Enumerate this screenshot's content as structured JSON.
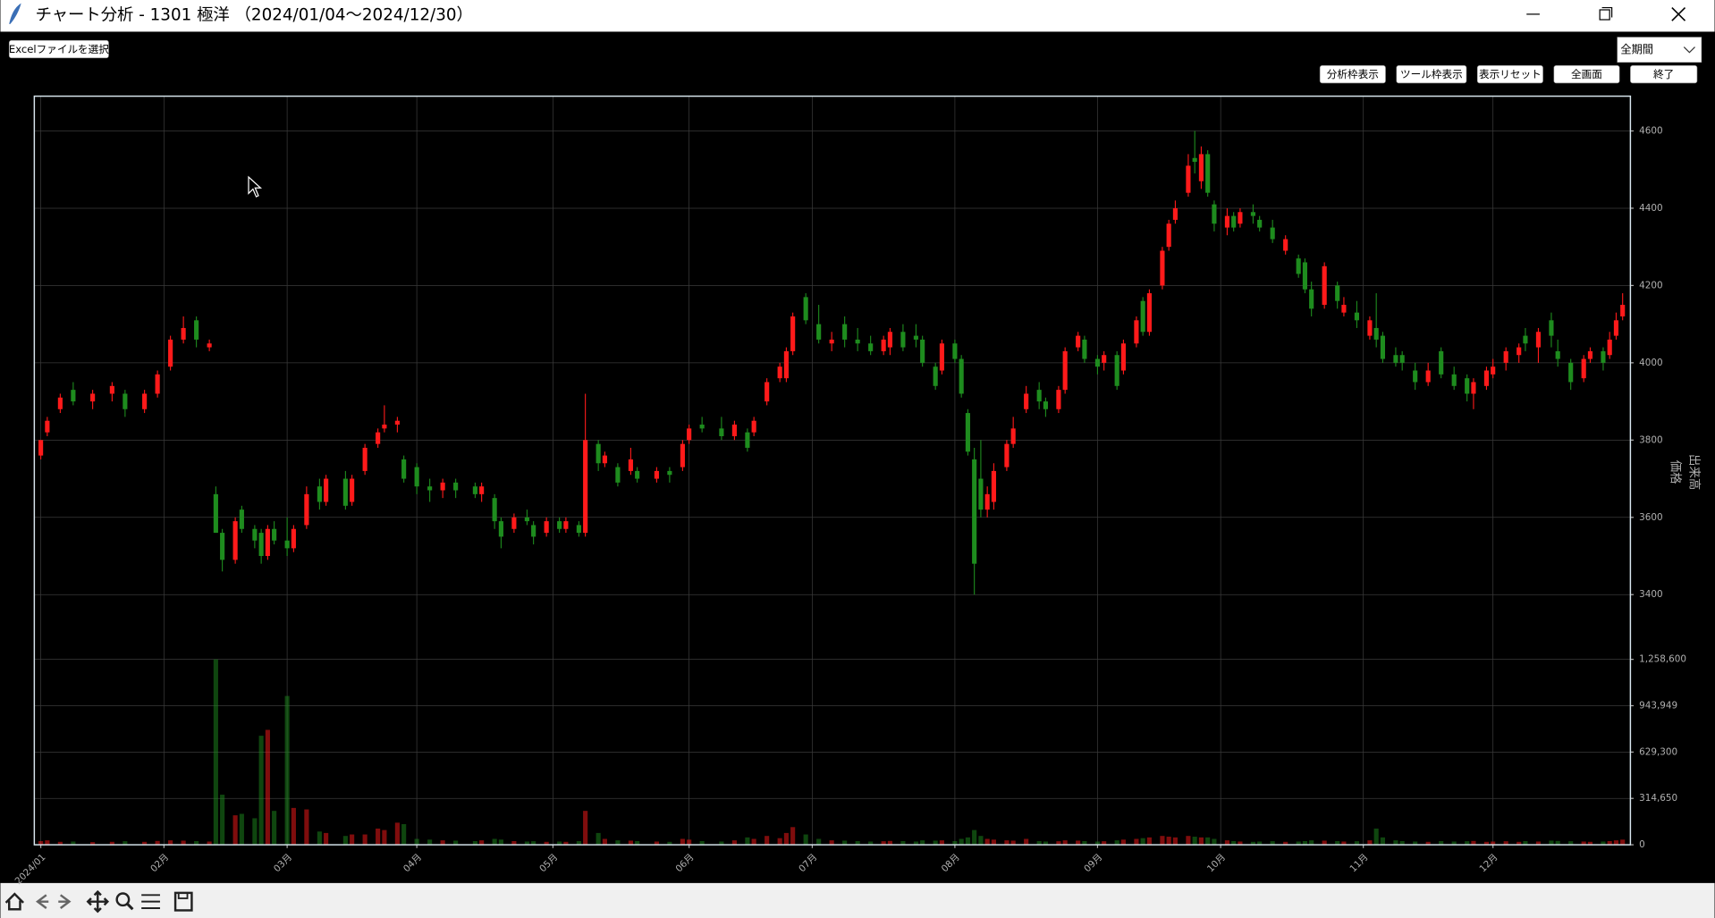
{
  "window": {
    "title": "チャート分析 - 1301 極洋 （2024/01/04～2024/12/30）",
    "file_button": "Excelファイルを選択",
    "period_select": "全期間",
    "buttons": [
      "分析枠表示",
      "ツール枠表示",
      "表示リセット",
      "全画面",
      "終了"
    ]
  },
  "chart_data": {
    "type": "candlestick",
    "grid": true,
    "up_color": "#ff1a1a",
    "down_color": "#1e8c1e",
    "xlim": [
      -1,
      245.2
    ],
    "xticks": [
      {
        "value": 0,
        "label": "2024/01"
      },
      {
        "value": 19,
        "label": "02月"
      },
      {
        "value": 38,
        "label": "03月"
      },
      {
        "value": 58,
        "label": "04月"
      },
      {
        "value": 79,
        "label": "05月"
      },
      {
        "value": 100,
        "label": "06月"
      },
      {
        "value": 119,
        "label": "07月"
      },
      {
        "value": 141,
        "label": "08月"
      },
      {
        "value": 163,
        "label": "09月"
      },
      {
        "value": 182,
        "label": "10月"
      },
      {
        "value": 204,
        "label": "11月"
      },
      {
        "value": 224,
        "label": "12月"
      }
    ],
    "ylim": [
      3290,
      4690
    ],
    "yticks": [
      3400,
      3600,
      3800,
      4000,
      4200,
      4400,
      4600
    ],
    "ylabel": "価格",
    "volume": {
      "ylim": [
        0,
        1350000
      ],
      "ylabel": "出来高",
      "yticks": [
        0,
        {
          "value": 314650,
          "label": "314,650"
        },
        {
          "value": 629300,
          "label": "629,300"
        },
        {
          "value": 943949,
          "label": "943,949"
        },
        {
          "value": 1258600,
          "label": "1,258,600"
        }
      ]
    },
    "candles": {
      "x": [
        0,
        1,
        3,
        5,
        8,
        11,
        13,
        16,
        18,
        20,
        22,
        24,
        26,
        27,
        28,
        30,
        31,
        33,
        34,
        35,
        36,
        38,
        39,
        41,
        43,
        44,
        47,
        48,
        50,
        52,
        53,
        55,
        56,
        58,
        60,
        62,
        64,
        67,
        68,
        70,
        71,
        73,
        75,
        76,
        78,
        80,
        81,
        83,
        84,
        86,
        87,
        89,
        91,
        92,
        95,
        97,
        99,
        100,
        102,
        105,
        107,
        109,
        110,
        112,
        114,
        115,
        116,
        118,
        120,
        122,
        124,
        126,
        128,
        130,
        131,
        133,
        135,
        136,
        138,
        139,
        141,
        142,
        143,
        144,
        145,
        146,
        147,
        149,
        150,
        152,
        154,
        155,
        157,
        158,
        160,
        161,
        163,
        164,
        166,
        167,
        169,
        170,
        171,
        173,
        174,
        175,
        177,
        178,
        179,
        180,
        181,
        183,
        184,
        185,
        187,
        188,
        190,
        192,
        194,
        195,
        196,
        198,
        200,
        201,
        203,
        205,
        206,
        207,
        209,
        210,
        212,
        214,
        216,
        218,
        220,
        221,
        223,
        224,
        226,
        228,
        229,
        231,
        233,
        234,
        236,
        238,
        239,
        241,
        242,
        243,
        244
      ],
      "open": [
        3760,
        3820,
        3880,
        3930,
        3900,
        3920,
        3920,
        3880,
        3920,
        3990,
        4060,
        4110,
        4040,
        3660,
        3560,
        3490,
        3620,
        3570,
        3560,
        3500,
        3570,
        3540,
        3520,
        3580,
        3680,
        3640,
        3700,
        3640,
        3720,
        3790,
        3830,
        3840,
        3750,
        3730,
        3680,
        3670,
        3690,
        3680,
        3660,
        3650,
        3590,
        3570,
        3600,
        3580,
        3560,
        3590,
        3570,
        3580,
        3560,
        3790,
        3740,
        3730,
        3720,
        3720,
        3700,
        3720,
        3730,
        3800,
        3840,
        3830,
        3810,
        3820,
        3820,
        3900,
        3960,
        3960,
        4030,
        4170,
        4100,
        4050,
        4100,
        4060,
        4050,
        4030,
        4040,
        4080,
        4070,
        4060,
        3990,
        3980,
        4050,
        4010,
        3870,
        3750,
        3700,
        3620,
        3640,
        3730,
        3790,
        3880,
        3930,
        3900,
        3880,
        3930,
        4040,
        4060,
        4010,
        4000,
        4020,
        3980,
        4050,
        4160,
        4080,
        4200,
        4300,
        4370,
        4440,
        4530,
        4470,
        4540,
        4410,
        4350,
        4380,
        4360,
        4390,
        4370,
        4350,
        4290,
        4270,
        4260,
        4190,
        4150,
        4200,
        4130,
        4130,
        4070,
        4090,
        4070,
        4020,
        4020,
        3980,
        3950,
        4030,
        3970,
        3960,
        3920,
        3940,
        3970,
        4000,
        4020,
        4070,
        4040,
        4110,
        4030,
        4000,
        3960,
        4010,
        4030,
        4020,
        4070,
        4120
      ],
      "high": [
        3800,
        3860,
        3920,
        3950,
        3930,
        3950,
        3930,
        3930,
        3980,
        4070,
        4120,
        4120,
        4060,
        3680,
        3570,
        3600,
        3630,
        3580,
        3570,
        3580,
        3590,
        3600,
        3580,
        3680,
        3700,
        3710,
        3720,
        3710,
        3790,
        3830,
        3890,
        3860,
        3760,
        3740,
        3700,
        3700,
        3700,
        3690,
        3690,
        3660,
        3600,
        3610,
        3620,
        3590,
        3600,
        3600,
        3600,
        3590,
        3920,
        3800,
        3770,
        3740,
        3780,
        3730,
        3730,
        3730,
        3800,
        3840,
        3860,
        3860,
        3850,
        3830,
        3860,
        3960,
        4000,
        4040,
        4130,
        4180,
        4150,
        4080,
        4120,
        4090,
        4070,
        4070,
        4090,
        4100,
        4100,
        4070,
        4000,
        4060,
        4060,
        4020,
        3880,
        3780,
        3800,
        3680,
        3740,
        3800,
        3860,
        3940,
        3950,
        3910,
        3940,
        4040,
        4080,
        4070,
        4020,
        4030,
        4030,
        4060,
        4120,
        4170,
        4190,
        4300,
        4370,
        4420,
        4540,
        4600,
        4560,
        4550,
        4420,
        4400,
        4390,
        4400,
        4410,
        4380,
        4370,
        4330,
        4280,
        4270,
        4210,
        4260,
        4210,
        4170,
        4160,
        4120,
        4180,
        4080,
        4040,
        4030,
        4000,
        4000,
        4040,
        3990,
        3970,
        3960,
        3990,
        4010,
        4040,
        4050,
        4090,
        4090,
        4130,
        4060,
        4010,
        4020,
        4040,
        4040,
        4080,
        4130,
        4180
      ],
      "low": [
        3750,
        3810,
        3870,
        3890,
        3880,
        3900,
        3860,
        3870,
        3910,
        3980,
        4050,
        4040,
        4030,
        3560,
        3460,
        3480,
        3560,
        3520,
        3480,
        3490,
        3530,
        3500,
        3510,
        3570,
        3620,
        3630,
        3620,
        3630,
        3710,
        3780,
        3820,
        3820,
        3690,
        3660,
        3640,
        3650,
        3650,
        3650,
        3640,
        3570,
        3520,
        3560,
        3580,
        3530,
        3550,
        3560,
        3560,
        3550,
        3550,
        3720,
        3730,
        3680,
        3710,
        3690,
        3690,
        3690,
        3720,
        3790,
        3820,
        3800,
        3800,
        3770,
        3810,
        3890,
        3950,
        3950,
        4020,
        4100,
        4050,
        4030,
        4040,
        4030,
        4020,
        4020,
        4020,
        4030,
        4040,
        3990,
        3930,
        3970,
        4000,
        3910,
        3760,
        3400,
        3600,
        3600,
        3620,
        3720,
        3780,
        3870,
        3880,
        3860,
        3870,
        3920,
        4030,
        4000,
        3970,
        3980,
        3930,
        3970,
        4040,
        4070,
        4070,
        4190,
        4290,
        4360,
        4430,
        4490,
        4450,
        4430,
        4340,
        4330,
        4340,
        4350,
        4360,
        4340,
        4310,
        4280,
        4220,
        4180,
        4120,
        4140,
        4140,
        4120,
        4090,
        4060,
        4040,
        4000,
        3990,
        3980,
        3930,
        3940,
        3960,
        3930,
        3900,
        3880,
        3930,
        3960,
        3980,
        4000,
        4030,
        4000,
        4040,
        3990,
        3930,
        3950,
        4000,
        3980,
        4010,
        4060,
        4110
      ],
      "close": [
        3800,
        3850,
        3910,
        3900,
        3920,
        3940,
        3880,
        3920,
        3970,
        4060,
        4090,
        4060,
        4050,
        3560,
        3490,
        3590,
        3570,
        3540,
        3500,
        3570,
        3540,
        3520,
        3570,
        3660,
        3640,
        3700,
        3630,
        3700,
        3780,
        3820,
        3840,
        3850,
        3700,
        3680,
        3670,
        3690,
        3670,
        3660,
        3680,
        3590,
        3550,
        3600,
        3590,
        3550,
        3590,
        3570,
        3590,
        3560,
        3800,
        3740,
        3760,
        3690,
        3750,
        3700,
        3720,
        3710,
        3790,
        3830,
        3830,
        3810,
        3840,
        3780,
        3850,
        3950,
        3990,
        4030,
        4120,
        4110,
        4060,
        4060,
        4060,
        4050,
        4030,
        4060,
        4080,
        4040,
        4060,
        4000,
        3940,
        4050,
        4010,
        3920,
        3770,
        3480,
        3620,
        3660,
        3720,
        3790,
        3830,
        3920,
        3900,
        3880,
        3930,
        4030,
        4070,
        4010,
        3990,
        4020,
        3940,
        4050,
        4110,
        4080,
        4180,
        4290,
        4360,
        4400,
        4510,
        4520,
        4540,
        4440,
        4360,
        4380,
        4350,
        4390,
        4380,
        4350,
        4320,
        4320,
        4230,
        4190,
        4140,
        4250,
        4160,
        4150,
        4110,
        4110,
        4060,
        4010,
        4000,
        4000,
        3950,
        3980,
        3970,
        3940,
        3920,
        3950,
        3980,
        3990,
        4030,
        4040,
        4050,
        4080,
        4070,
        4010,
        3950,
        4010,
        4030,
        4000,
        4060,
        4110,
        4150
      ],
      "volume": [
        25000,
        30000,
        20000,
        22000,
        18000,
        20000,
        24000,
        20000,
        26000,
        30000,
        28000,
        25000,
        22000,
        1258600,
        340000,
        200000,
        210000,
        180000,
        740000,
        780000,
        230000,
        1010000,
        250000,
        240000,
        90000,
        80000,
        60000,
        70000,
        70000,
        110000,
        100000,
        150000,
        140000,
        40000,
        35000,
        30000,
        28000,
        25000,
        30000,
        40000,
        35000,
        25000,
        22000,
        24000,
        20000,
        22000,
        20000,
        25000,
        230000,
        80000,
        40000,
        30000,
        28000,
        25000,
        22000,
        20000,
        40000,
        35000,
        25000,
        22000,
        30000,
        50000,
        40000,
        60000,
        45000,
        80000,
        120000,
        70000,
        40000,
        30000,
        28000,
        25000,
        22000,
        24000,
        26000,
        25000,
        22000,
        30000,
        28000,
        30000,
        25000,
        40000,
        50000,
        100000,
        60000,
        40000,
        35000,
        30000,
        28000,
        40000,
        25000,
        22000,
        24000,
        30000,
        28000,
        25000,
        22000,
        24000,
        30000,
        35000,
        40000,
        45000,
        50000,
        60000,
        55000,
        50000,
        60000,
        55000,
        50000,
        50000,
        40000,
        30000,
        25000,
        22000,
        20000,
        22000,
        24000,
        20000,
        22000,
        25000,
        30000,
        28000,
        25000,
        22000,
        24000,
        30000,
        110000,
        50000,
        30000,
        25000,
        22000,
        20000,
        25000,
        22000,
        24000,
        26000,
        20000,
        22000,
        24000,
        20000,
        25000,
        22000,
        28000,
        26000,
        24000,
        22000,
        20000,
        22000,
        25000,
        30000,
        35000
      ]
    }
  }
}
